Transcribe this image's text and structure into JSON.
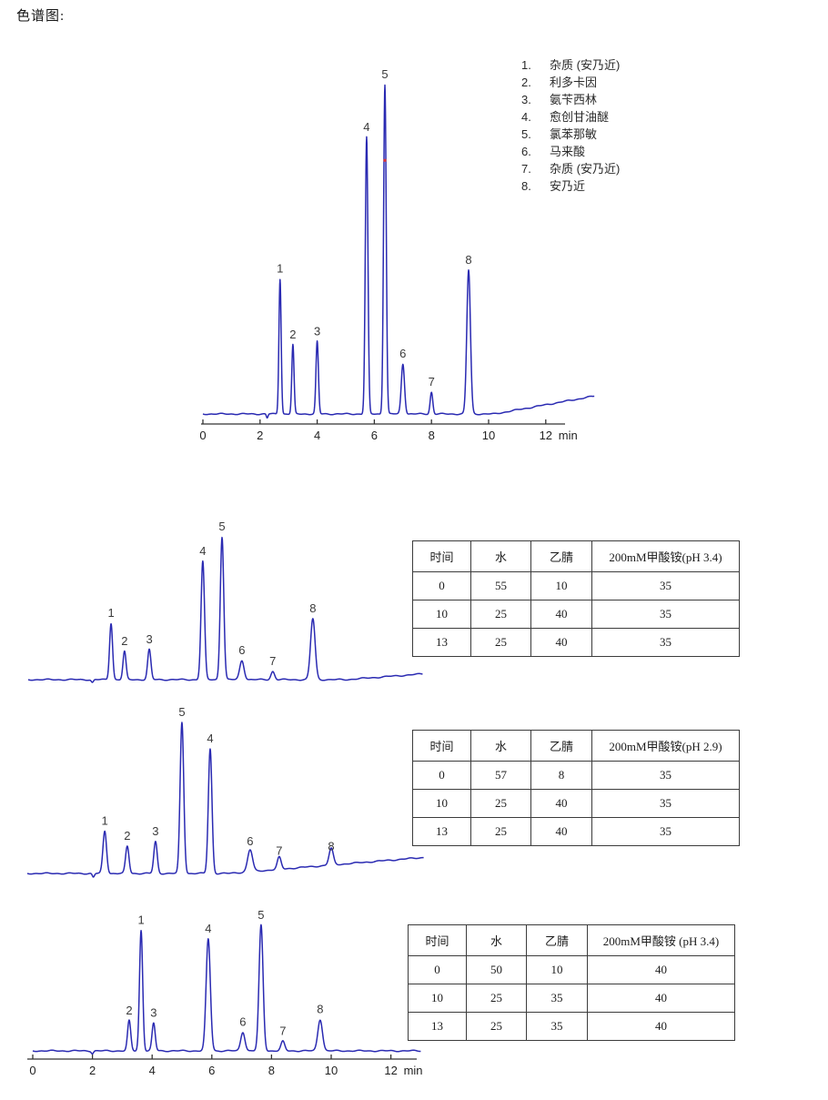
{
  "page": {
    "title": "色谱图:"
  },
  "colors": {
    "trace": "#2a2ab2",
    "marker_red": "#e03030",
    "axis": "#333333"
  },
  "legend": {
    "items": [
      {
        "num": "1.",
        "label": "杂质 (安乃近)"
      },
      {
        "num": "2.",
        "label": "利多卡因"
      },
      {
        "num": "3.",
        "label": "氨苄西林"
      },
      {
        "num": "4.",
        "label": "愈创甘油醚"
      },
      {
        "num": "5.",
        "label": "氯苯那敏"
      },
      {
        "num": "6.",
        "label": "马来酸"
      },
      {
        "num": "7.",
        "label": "杂质 (安乃近)"
      },
      {
        "num": "8.",
        "label": "安乃近"
      }
    ]
  },
  "chart_data": [
    {
      "id": "main-chromatogram",
      "type": "line",
      "xlabel": "min",
      "x_axis": {
        "visible": true,
        "ticks": [
          0,
          2,
          4,
          6,
          8,
          10,
          12
        ],
        "unit": "min",
        "range": [
          0,
          13.7
        ]
      },
      "peaks": [
        {
          "label": "1",
          "rt_min": 2.7,
          "height_frac": 0.41,
          "sigma_min": 0.055
        },
        {
          "label": "2",
          "rt_min": 3.15,
          "height_frac": 0.21,
          "sigma_min": 0.055
        },
        {
          "label": "3",
          "rt_min": 4.0,
          "height_frac": 0.22,
          "sigma_min": 0.06
        },
        {
          "label": "4",
          "rt_min": 5.73,
          "height_frac": 0.84,
          "sigma_min": 0.065
        },
        {
          "label": "5",
          "rt_min": 6.37,
          "height_frac": 1.0,
          "sigma_min": 0.065
        },
        {
          "label": "6",
          "rt_min": 7.0,
          "height_frac": 0.152,
          "sigma_min": 0.08
        },
        {
          "label": "7",
          "rt_min": 8.0,
          "height_frac": 0.066,
          "sigma_min": 0.065
        },
        {
          "label": "8",
          "rt_min": 9.3,
          "height_frac": 0.437,
          "sigma_min": 0.09
        }
      ],
      "dips": [
        {
          "rt_min": 2.25,
          "depth_frac": 0.012,
          "sigma_min": 0.04
        }
      ],
      "baseline_drift": {
        "start_min": 10.2,
        "slope_frac_per_min": 0.0155
      },
      "marker": {
        "rt_min": 6.37,
        "height_frac": 0.77
      }
    },
    {
      "id": "chromatogram-gradient-ph3.4-55-10-35",
      "type": "line",
      "xlabel": "",
      "x_axis": {
        "visible": false,
        "ticks": [],
        "unit": "min",
        "range": [
          0,
          12.9
        ]
      },
      "peaks": [
        {
          "label": "1",
          "rt_min": 2.71,
          "height_frac": 0.395,
          "sigma_min": 0.07
        },
        {
          "label": "2",
          "rt_min": 3.15,
          "height_frac": 0.197,
          "sigma_min": 0.07
        },
        {
          "label": "3",
          "rt_min": 3.96,
          "height_frac": 0.21,
          "sigma_min": 0.075
        },
        {
          "label": "4",
          "rt_min": 5.71,
          "height_frac": 0.828,
          "sigma_min": 0.08
        },
        {
          "label": "5",
          "rt_min": 6.34,
          "height_frac": 1.0,
          "sigma_min": 0.08
        },
        {
          "label": "6",
          "rt_min": 6.99,
          "height_frac": 0.134,
          "sigma_min": 0.1
        },
        {
          "label": "7",
          "rt_min": 8.0,
          "height_frac": 0.057,
          "sigma_min": 0.085
        },
        {
          "label": "8",
          "rt_min": 9.31,
          "height_frac": 0.427,
          "sigma_min": 0.105
        }
      ],
      "dips": [
        {
          "rt_min": 2.1,
          "depth_frac": 0.02,
          "sigma_min": 0.05
        }
      ],
      "baseline_drift": {
        "start_min": 10.4,
        "slope_frac_per_min": 0.016
      },
      "marker": null
    },
    {
      "id": "chromatogram-gradient-ph2.9-57-8-35",
      "type": "line",
      "xlabel": "",
      "x_axis": {
        "visible": false,
        "ticks": [],
        "unit": "min",
        "range": [
          0,
          13.2
        ]
      },
      "peaks": [
        {
          "label": "1",
          "rt_min": 2.58,
          "height_frac": 0.28,
          "sigma_min": 0.085
        },
        {
          "label": "2",
          "rt_min": 3.33,
          "height_frac": 0.18,
          "sigma_min": 0.08
        },
        {
          "label": "3",
          "rt_min": 4.27,
          "height_frac": 0.21,
          "sigma_min": 0.08
        },
        {
          "label": "5",
          "rt_min": 5.15,
          "height_frac": 1.0,
          "sigma_min": 0.085
        },
        {
          "label": "4",
          "rt_min": 6.09,
          "height_frac": 0.825,
          "sigma_min": 0.085
        },
        {
          "label": "6",
          "rt_min": 7.42,
          "height_frac": 0.145,
          "sigma_min": 0.115
        },
        {
          "label": "7",
          "rt_min": 8.39,
          "height_frac": 0.08,
          "sigma_min": 0.09
        },
        {
          "label": "8",
          "rt_min": 10.12,
          "height_frac": 0.11,
          "sigma_min": 0.1
        }
      ],
      "dips": [
        {
          "rt_min": 2.2,
          "depth_frac": 0.025,
          "sigma_min": 0.05
        }
      ],
      "baseline_drift": {
        "start_min": 6.7,
        "slope_frac_per_min": 0.0163
      },
      "marker": null
    },
    {
      "id": "chromatogram-gradient-ph3.4-50-10-40",
      "type": "line",
      "xlabel": "min",
      "x_axis": {
        "visible": true,
        "ticks": [
          0,
          2,
          4,
          6,
          8,
          10,
          12
        ],
        "unit": "min",
        "range": [
          0,
          13.0
        ]
      },
      "peaks": [
        {
          "label": "2",
          "rt_min": 3.23,
          "height_frac": 0.24,
          "sigma_min": 0.075
        },
        {
          "label": "1",
          "rt_min": 3.63,
          "height_frac": 0.96,
          "sigma_min": 0.075
        },
        {
          "label": "3",
          "rt_min": 4.05,
          "height_frac": 0.22,
          "sigma_min": 0.075
        },
        {
          "label": "4",
          "rt_min": 5.88,
          "height_frac": 0.89,
          "sigma_min": 0.1
        },
        {
          "label": "6",
          "rt_min": 7.04,
          "height_frac": 0.15,
          "sigma_min": 0.1
        },
        {
          "label": "5",
          "rt_min": 7.65,
          "height_frac": 1.0,
          "sigma_min": 0.095
        },
        {
          "label": "7",
          "rt_min": 8.38,
          "height_frac": 0.075,
          "sigma_min": 0.09
        },
        {
          "label": "8",
          "rt_min": 9.63,
          "height_frac": 0.25,
          "sigma_min": 0.11
        }
      ],
      "dips": [
        {
          "rt_min": 2.0,
          "depth_frac": 0.02,
          "sigma_min": 0.05
        }
      ],
      "baseline_drift": null,
      "marker": null
    }
  ],
  "tables": [
    {
      "headers": [
        "时间",
        "水",
        "乙腈",
        "200mM甲酸铵(pH 3.4)"
      ],
      "rows": [
        [
          "0",
          "55",
          "10",
          "35"
        ],
        [
          "10",
          "25",
          "40",
          "35"
        ],
        [
          "13",
          "25",
          "40",
          "35"
        ]
      ]
    },
    {
      "headers": [
        "时间",
        "水",
        "乙腈",
        "200mM甲酸铵(pH 2.9)"
      ],
      "rows": [
        [
          "0",
          "57",
          "8",
          "35"
        ],
        [
          "10",
          "25",
          "40",
          "35"
        ],
        [
          "13",
          "25",
          "40",
          "35"
        ]
      ]
    },
    {
      "headers": [
        "时间",
        "水",
        "乙腈",
        "200mM甲酸铵 (pH 3.4)"
      ],
      "rows": [
        [
          "0",
          "50",
          "10",
          "40"
        ],
        [
          "10",
          "25",
          "35",
          "40"
        ],
        [
          "13",
          "25",
          "35",
          "40"
        ]
      ]
    }
  ]
}
